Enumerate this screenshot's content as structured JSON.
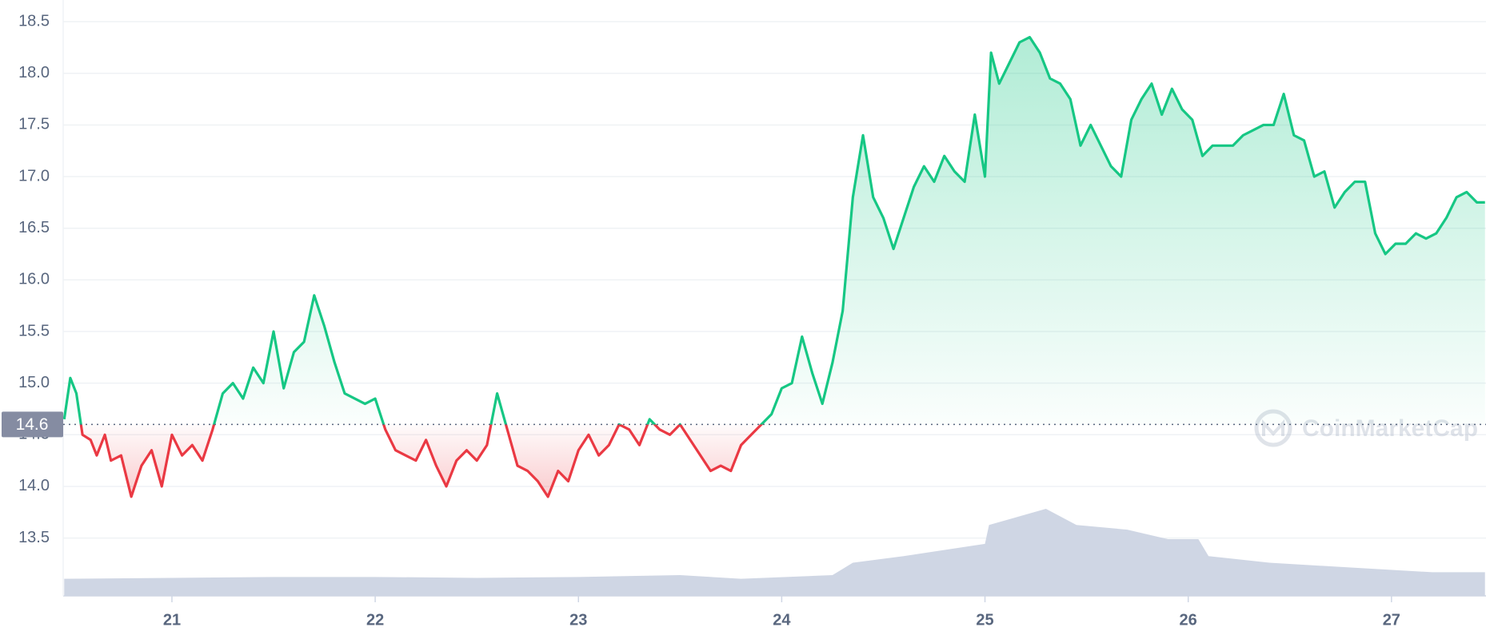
{
  "chart_data": {
    "type": "line",
    "xlim": [
      20.465,
      27.465
    ],
    "xticks": [
      21,
      22,
      23,
      24,
      25,
      26,
      27
    ],
    "ylim": [
      12.94,
      18.71
    ],
    "yticks": [
      13.5,
      {
        "value": 14,
        "label": "14.0"
      },
      14.5,
      {
        "value": 15,
        "label": "15.0"
      },
      15.5,
      {
        "value": 16,
        "label": "16.0"
      },
      16.5,
      {
        "value": 17,
        "label": "17.0"
      },
      17.5,
      {
        "value": 18,
        "label": "18.0"
      },
      18.5
    ],
    "grid": true,
    "baseline": 14.6,
    "up_color": "#16c784",
    "down_color": "#ea3943",
    "watermark": "CoinMarketCap",
    "price": {
      "x": [
        20.47,
        20.5,
        20.53,
        20.56,
        20.6,
        20.63,
        20.67,
        20.7,
        20.75,
        20.8,
        20.85,
        20.9,
        20.95,
        21,
        21.05,
        21.1,
        21.15,
        21.2,
        21.25,
        21.3,
        21.35,
        21.4,
        21.45,
        21.5,
        21.55,
        21.6,
        21.65,
        21.7,
        21.75,
        21.8,
        21.85,
        21.9,
        21.95,
        22,
        22.05,
        22.1,
        22.15,
        22.2,
        22.25,
        22.3,
        22.35,
        22.4,
        22.45,
        22.5,
        22.55,
        22.6,
        22.65,
        22.7,
        22.75,
        22.8,
        22.85,
        22.9,
        22.95,
        23,
        23.05,
        23.1,
        23.15,
        23.2,
        23.25,
        23.3,
        23.35,
        23.4,
        23.45,
        23.5,
        23.55,
        23.6,
        23.65,
        23.7,
        23.75,
        23.8,
        23.85,
        23.9,
        23.95,
        24,
        24.05,
        24.1,
        24.15,
        24.2,
        24.25,
        24.3,
        24.35,
        24.4,
        24.45,
        24.5,
        24.55,
        24.6,
        24.65,
        24.7,
        24.75,
        24.8,
        24.85,
        24.9,
        24.95,
        25,
        25.03,
        25.07,
        25.12,
        25.17,
        25.22,
        25.27,
        25.32,
        25.37,
        25.42,
        25.47,
        25.52,
        25.57,
        25.62,
        25.67,
        25.72,
        25.77,
        25.82,
        25.87,
        25.92,
        25.97,
        26.02,
        26.07,
        26.12,
        26.17,
        26.22,
        26.27,
        26.32,
        26.37,
        26.42,
        26.47,
        26.52,
        26.57,
        26.62,
        26.67,
        26.72,
        26.77,
        26.82,
        26.87,
        26.92,
        26.97,
        27.02,
        27.07,
        27.12,
        27.17,
        27.22,
        27.27,
        27.32,
        27.37,
        27.42,
        27.46
      ],
      "values": [
        14.65,
        15.05,
        14.9,
        14.5,
        14.45,
        14.3,
        14.5,
        14.25,
        14.3,
        13.9,
        14.2,
        14.35,
        14.0,
        14.5,
        14.3,
        14.4,
        14.25,
        14.55,
        14.9,
        15.0,
        14.85,
        15.15,
        15.0,
        15.5,
        14.95,
        15.3,
        15.4,
        15.85,
        15.55,
        15.2,
        14.9,
        14.85,
        14.8,
        14.85,
        14.55,
        14.35,
        14.3,
        14.25,
        14.45,
        14.2,
        14.0,
        14.25,
        14.35,
        14.25,
        14.4,
        14.9,
        14.55,
        14.2,
        14.15,
        14.05,
        13.9,
        14.15,
        14.05,
        14.35,
        14.5,
        14.3,
        14.4,
        14.6,
        14.55,
        14.4,
        14.65,
        14.55,
        14.5,
        14.6,
        14.45,
        14.3,
        14.15,
        14.2,
        14.15,
        14.4,
        14.5,
        14.6,
        14.7,
        14.95,
        15.0,
        15.45,
        15.1,
        14.8,
        15.2,
        15.7,
        16.8,
        17.4,
        16.8,
        16.6,
        16.3,
        16.6,
        16.9,
        17.1,
        16.95,
        17.2,
        17.05,
        16.95,
        17.6,
        17.0,
        18.2,
        17.9,
        18.1,
        18.3,
        18.35,
        18.2,
        17.95,
        17.9,
        17.75,
        17.3,
        17.5,
        17.3,
        17.1,
        17.0,
        17.55,
        17.75,
        17.9,
        17.6,
        17.85,
        17.65,
        17.55,
        17.2,
        17.3,
        17.3,
        17.3,
        17.4,
        17.45,
        17.5,
        17.5,
        17.8,
        17.4,
        17.35,
        17.0,
        17.05,
        16.7,
        16.85,
        16.95,
        16.95,
        16.45,
        16.25,
        16.35,
        16.35,
        16.45,
        16.4,
        16.45,
        16.6,
        16.8,
        16.85,
        16.75,
        16.75
      ]
    },
    "volume": {
      "axis": "y2",
      "color": "#cfd6e4",
      "x": [
        20.47,
        21,
        21.5,
        22,
        22.5,
        23,
        23.5,
        23.8,
        24.25,
        24.35,
        24.6,
        25,
        25.02,
        25.3,
        25.45,
        25.7,
        25.9,
        26.05,
        26.1,
        26.4,
        26.8,
        27.2,
        27.46
      ],
      "values": [
        18,
        19,
        20,
        20,
        19,
        20,
        22,
        18,
        22,
        35,
        42,
        55,
        75,
        92,
        75,
        70,
        60,
        60,
        42,
        35,
        30,
        25,
        25
      ]
    },
    "y2lim": [
      0,
      630
    ]
  }
}
